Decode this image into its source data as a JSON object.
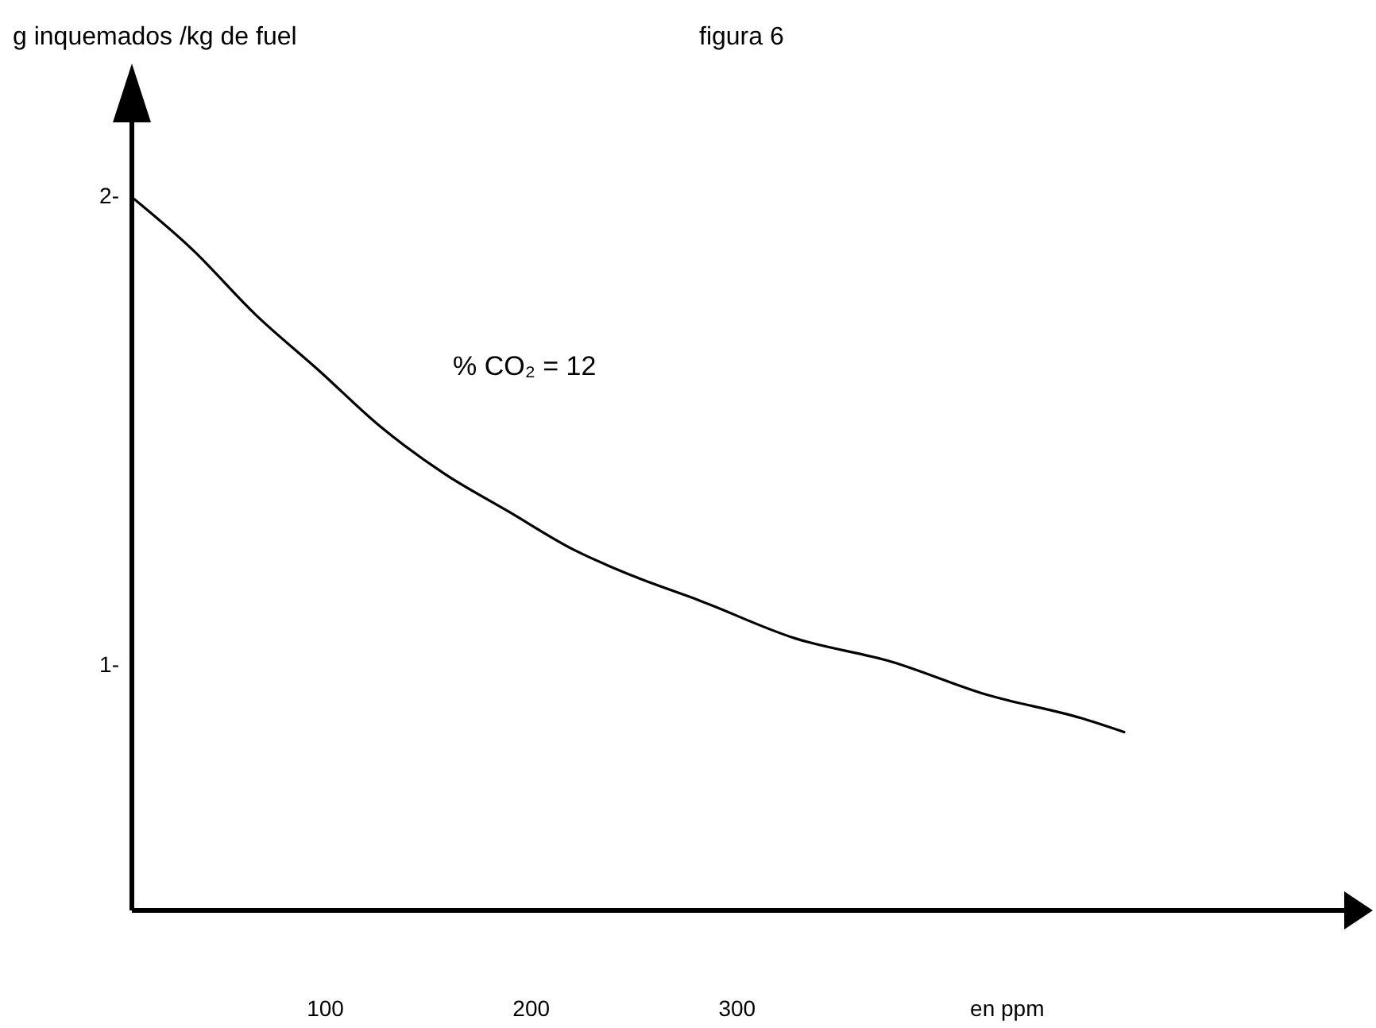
{
  "chart_data": {
    "type": "line",
    "title": "figura 6",
    "ylabel": "g inquemados /kg de fuel",
    "xlabel": "en ppm",
    "annotations": [
      "% CO₂ = 12"
    ],
    "series": [
      {
        "color": "#000000",
        "x": [
          6,
          35,
          66,
          97,
          127,
          158,
          189,
          220,
          251,
          282,
          328,
          375,
          421,
          467,
          488
        ],
        "values": [
          2.0,
          1.89,
          1.75,
          1.63,
          1.51,
          1.41,
          1.33,
          1.25,
          1.19,
          1.14,
          1.06,
          1.01,
          0.94,
          0.89,
          0.86
        ]
      }
    ],
    "xlim": [
      6,
      598
    ],
    "ylim": [
      0.48,
      2.2
    ],
    "xticks": [
      100,
      200,
      300
    ],
    "yticks": [
      {
        "value": 1,
        "label": "1-"
      },
      {
        "value": 2,
        "label": "2-"
      }
    ],
    "grid": false,
    "marker": "none",
    "line_style": "solid"
  }
}
